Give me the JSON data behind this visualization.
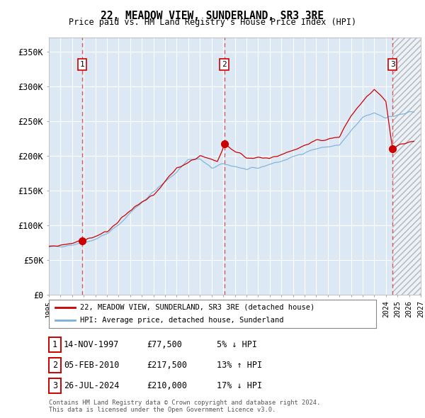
{
  "title": "22, MEADOW VIEW, SUNDERLAND, SR3 3RE",
  "subtitle": "Price paid vs. HM Land Registry's House Price Index (HPI)",
  "ylim": [
    0,
    370000
  ],
  "yticks": [
    0,
    50000,
    100000,
    150000,
    200000,
    250000,
    300000,
    350000
  ],
  "ytick_labels": [
    "£0",
    "£50K",
    "£100K",
    "£150K",
    "£200K",
    "£250K",
    "£300K",
    "£350K"
  ],
  "background_color": "#ffffff",
  "plot_bg_color": "#dce9f5",
  "grid_color": "#ffffff",
  "hpi_color": "#7ab0d8",
  "price_color": "#cc0000",
  "sale_marker_color": "#cc0000",
  "sale1_date": 1997.87,
  "sale1_price": 77500,
  "sale2_date": 2010.09,
  "sale2_price": 217500,
  "sale3_date": 2024.57,
  "sale3_price": 210000,
  "legend_label_price": "22, MEADOW VIEW, SUNDERLAND, SR3 3RE (detached house)",
  "legend_label_hpi": "HPI: Average price, detached house, Sunderland",
  "table_rows": [
    [
      "1",
      "14-NOV-1997",
      "£77,500",
      "5% ↓ HPI"
    ],
    [
      "2",
      "05-FEB-2010",
      "£217,500",
      "13% ↑ HPI"
    ],
    [
      "3",
      "26-JUL-2024",
      "£210,000",
      "17% ↓ HPI"
    ]
  ],
  "footer": "Contains HM Land Registry data © Crown copyright and database right 2024.\nThis data is licensed under the Open Government Licence v3.0.",
  "xmin": 1995.0,
  "xmax": 2027.0,
  "hpi_anchors_years": [
    1995.0,
    1996.0,
    1997.0,
    1998.0,
    1999.0,
    2000.0,
    2001.0,
    2002.0,
    2003.0,
    2004.0,
    2005.0,
    2006.0,
    2007.0,
    2008.0,
    2009.0,
    2010.0,
    2011.0,
    2012.0,
    2013.0,
    2014.0,
    2015.0,
    2016.0,
    2017.0,
    2018.0,
    2019.0,
    2020.0,
    2021.0,
    2022.0,
    2023.0,
    2024.0,
    2025.0,
    2026.0
  ],
  "hpi_anchors_vals": [
    68000,
    70000,
    72000,
    75000,
    80000,
    88000,
    100000,
    118000,
    133000,
    148000,
    162000,
    177000,
    195000,
    195000,
    182000,
    188000,
    185000,
    180000,
    182000,
    188000,
    192000,
    198000,
    205000,
    210000,
    213000,
    215000,
    235000,
    255000,
    262000,
    255000,
    258000,
    262000
  ]
}
